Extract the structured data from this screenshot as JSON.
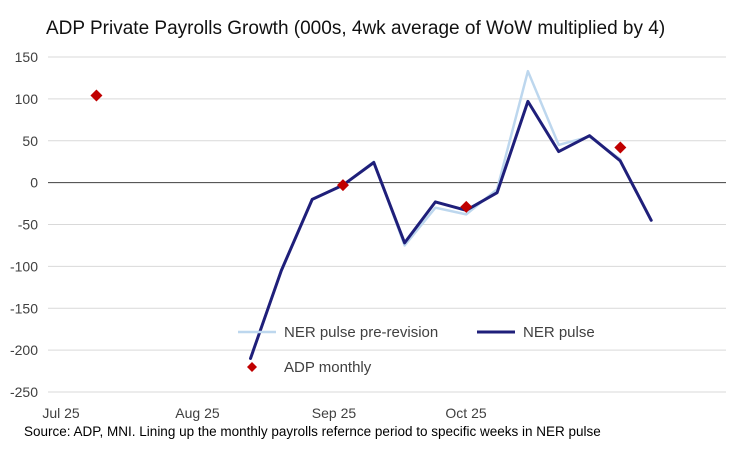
{
  "chart_data": {
    "type": "line",
    "title": "ADP Private Payrolls Growth (000s, 4wk average of WoW multiplied by 4)",
    "xlabel": "",
    "ylabel": "",
    "ylim": [
      -250,
      150
    ],
    "yticks": [
      150,
      100,
      50,
      0,
      -50,
      -100,
      -150,
      -200,
      -250
    ],
    "grid": true,
    "legend_position": "bottom-center",
    "x_ticks": [
      "Jul 25",
      "Aug 25",
      "Sep 25",
      "Oct 25"
    ],
    "series": [
      {
        "name": "NER pulse pre-revision",
        "type": "line",
        "color": "#bdd7ee",
        "x": [
          "2025-08-16",
          "2025-08-23",
          "2025-08-30",
          "2025-09-06",
          "2025-09-13",
          "2025-09-20",
          "2025-09-27",
          "2025-10-04",
          "2025-10-11",
          "2025-10-18",
          "2025-10-25",
          "2025-11-01",
          "2025-11-08",
          "2025-11-15",
          "2025-11-22"
        ],
        "values": [
          -210,
          -105,
          -20,
          -3,
          25,
          -75,
          -30,
          -38,
          -8,
          133,
          45,
          55,
          28,
          null,
          null
        ]
      },
      {
        "name": "NER pulse",
        "type": "line",
        "color": "#1f1f7a",
        "x": [
          "2025-08-16",
          "2025-08-23",
          "2025-08-30",
          "2025-09-06",
          "2025-09-13",
          "2025-09-20",
          "2025-09-27",
          "2025-10-04",
          "2025-10-11",
          "2025-10-18",
          "2025-10-25",
          "2025-11-01",
          "2025-11-08",
          "2025-11-15"
        ],
        "values": [
          -210,
          -105,
          -20,
          -3,
          24,
          -72,
          -23,
          -33,
          -12,
          97,
          37,
          56,
          26,
          -45
        ]
      },
      {
        "name": "ADP monthly",
        "type": "scatter",
        "color": "#c00000",
        "x": [
          "2025-07-12",
          "2025-09-06",
          "2025-10-04",
          "2025-11-08"
        ],
        "values": [
          104,
          -3,
          -29,
          42
        ]
      }
    ]
  },
  "source_note": "Source: ADP, MNI. Lining up the monthly payrolls refernce period to specific weeks in NER pulse"
}
